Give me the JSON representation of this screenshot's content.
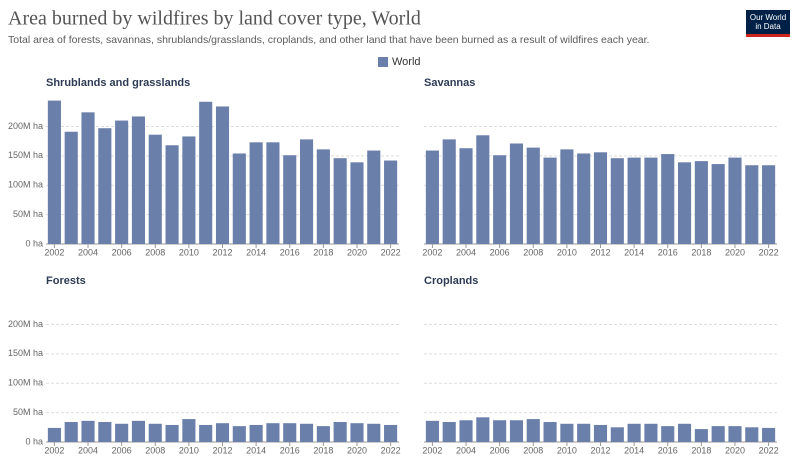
{
  "header": {
    "title": "Area burned by wildfires by land cover type, World",
    "subtitle": "Total area of forests, savannas, shrublands/grasslands, croplands, and other land that have been burned as a result of wildfires each year.",
    "logo": [
      "Our World",
      "in Data"
    ]
  },
  "chart_data": [
    {
      "type": "bar",
      "title": "Shrublands and grasslands",
      "x": [
        2002,
        2003,
        2004,
        2005,
        2006,
        2007,
        2008,
        2009,
        2010,
        2011,
        2012,
        2013,
        2014,
        2015,
        2016,
        2017,
        2018,
        2019,
        2020,
        2021,
        2022
      ],
      "xlim": [
        2001.5,
        2022.5
      ],
      "xticks": [
        2002,
        2004,
        2006,
        2008,
        2010,
        2012,
        2014,
        2016,
        2018,
        2020,
        2022
      ],
      "series": [
        {
          "name": "World",
          "color": "#6b7fab",
          "values": [
            244000000,
            191000000,
            224000000,
            197000000,
            210000000,
            217000000,
            186000000,
            168000000,
            183000000,
            242000000,
            234000000,
            154000000,
            173000000,
            173000000,
            151000000,
            178000000,
            161000000,
            146000000,
            139000000,
            159000000,
            142000000
          ]
        }
      ],
      "ylim": [
        0,
        245000000
      ],
      "yticks": [
        {
          "value": 0,
          "label": "0 ha"
        },
        {
          "value": 50000000,
          "label": "50M ha"
        },
        {
          "value": 100000000,
          "label": "100M ha"
        },
        {
          "value": 150000000,
          "label": "150M ha"
        },
        {
          "value": 200000000,
          "label": "200M ha"
        }
      ],
      "grid": true
    },
    {
      "type": "bar",
      "title": "Savannas",
      "x": [
        2002,
        2003,
        2004,
        2005,
        2006,
        2007,
        2008,
        2009,
        2010,
        2011,
        2012,
        2013,
        2014,
        2015,
        2016,
        2017,
        2018,
        2019,
        2020,
        2021,
        2022
      ],
      "xlim": [
        2001.5,
        2022.5
      ],
      "xticks": [
        2002,
        2004,
        2006,
        2008,
        2010,
        2012,
        2014,
        2016,
        2018,
        2020,
        2022
      ],
      "series": [
        {
          "name": "World",
          "color": "#6b7fab",
          "values": [
            159000000,
            178000000,
            163000000,
            185000000,
            151000000,
            171000000,
            164000000,
            147000000,
            161000000,
            154000000,
            156000000,
            146000000,
            147000000,
            147000000,
            153000000,
            139000000,
            141000000,
            136000000,
            147000000,
            134000000,
            134000000
          ]
        }
      ],
      "ylim": [
        0,
        245000000
      ],
      "yticks": [
        0,
        50000000,
        100000000,
        150000000,
        200000000
      ],
      "grid": true
    },
    {
      "type": "bar",
      "title": "Forests",
      "x": [
        2002,
        2003,
        2004,
        2005,
        2006,
        2007,
        2008,
        2009,
        2010,
        2011,
        2012,
        2013,
        2014,
        2015,
        2016,
        2017,
        2018,
        2019,
        2020,
        2021,
        2022
      ],
      "xlim": [
        2001.5,
        2022.5
      ],
      "xticks": [
        2002,
        2004,
        2006,
        2008,
        2010,
        2012,
        2014,
        2016,
        2018,
        2020,
        2022
      ],
      "series": [
        {
          "name": "World",
          "color": "#6b7fab",
          "values": [
            24000000,
            34000000,
            36000000,
            34000000,
            31000000,
            36000000,
            31000000,
            29000000,
            39000000,
            29000000,
            32000000,
            27000000,
            29000000,
            32000000,
            32000000,
            31000000,
            27000000,
            34000000,
            32000000,
            31000000,
            29000000
          ]
        }
      ],
      "ylim": [
        0,
        245000000
      ],
      "yticks": [
        {
          "value": 0,
          "label": "0 ha"
        },
        {
          "value": 50000000,
          "label": "50M ha"
        },
        {
          "value": 100000000,
          "label": "100M ha"
        },
        {
          "value": 150000000,
          "label": "150M ha"
        },
        {
          "value": 200000000,
          "label": "200M ha"
        }
      ],
      "grid": true
    },
    {
      "type": "bar",
      "title": "Croplands",
      "x": [
        2002,
        2003,
        2004,
        2005,
        2006,
        2007,
        2008,
        2009,
        2010,
        2011,
        2012,
        2013,
        2014,
        2015,
        2016,
        2017,
        2018,
        2019,
        2020,
        2021,
        2022
      ],
      "xlim": [
        2001.5,
        2022.5
      ],
      "xticks": [
        2002,
        2004,
        2006,
        2008,
        2010,
        2012,
        2014,
        2016,
        2018,
        2020,
        2022
      ],
      "series": [
        {
          "name": "World",
          "color": "#6b7fab",
          "values": [
            36000000,
            34000000,
            37000000,
            42000000,
            37000000,
            37000000,
            39000000,
            34000000,
            31000000,
            31000000,
            29000000,
            25000000,
            31000000,
            31000000,
            27000000,
            31000000,
            22000000,
            27000000,
            27000000,
            25000000,
            24000000
          ]
        }
      ],
      "ylim": [
        0,
        245000000
      ],
      "yticks": [
        0,
        50000000,
        100000000,
        150000000,
        200000000
      ],
      "grid": true
    }
  ]
}
